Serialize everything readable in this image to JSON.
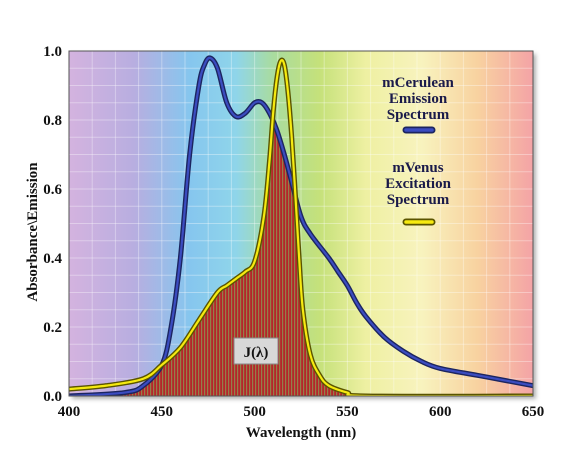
{
  "chart_data": {
    "type": "line",
    "title": "",
    "xlabel": "Wavelength (nm)",
    "ylabel": "Absorbance\\Emission",
    "xlim": [
      400,
      650
    ],
    "ylim": [
      0,
      1.0
    ],
    "x_ticks": [
      "400",
      "450",
      "500",
      "550",
      "600",
      "650"
    ],
    "y_ticks": [
      "0.0",
      "0.2",
      "0.4",
      "0.6",
      "0.8",
      "1.0"
    ],
    "grid": true,
    "series": [
      {
        "name_lines": [
          "mCerulean",
          "Emission",
          "Spectrum"
        ],
        "color": "#2e3c9e",
        "points": [
          [
            400,
            0.0
          ],
          [
            430,
            0.01
          ],
          [
            440,
            0.03
          ],
          [
            450,
            0.09
          ],
          [
            455,
            0.2
          ],
          [
            460,
            0.4
          ],
          [
            465,
            0.7
          ],
          [
            470,
            0.9
          ],
          [
            473,
            0.96
          ],
          [
            476,
            0.98
          ],
          [
            480,
            0.95
          ],
          [
            485,
            0.85
          ],
          [
            490,
            0.81
          ],
          [
            495,
            0.82
          ],
          [
            500,
            0.85
          ],
          [
            504,
            0.85
          ],
          [
            508,
            0.82
          ],
          [
            512,
            0.77
          ],
          [
            516,
            0.7
          ],
          [
            520,
            0.62
          ],
          [
            525,
            0.52
          ],
          [
            530,
            0.47
          ],
          [
            540,
            0.4
          ],
          [
            545,
            0.36
          ],
          [
            550,
            0.32
          ],
          [
            555,
            0.27
          ],
          [
            560,
            0.23
          ],
          [
            570,
            0.17
          ],
          [
            580,
            0.13
          ],
          [
            590,
            0.1
          ],
          [
            600,
            0.08
          ],
          [
            620,
            0.06
          ],
          [
            640,
            0.04
          ],
          [
            650,
            0.03
          ]
        ]
      },
      {
        "name_lines": [
          "mVenus",
          "Excitation",
          "Spectrum"
        ],
        "color": "#f2e600",
        "points": [
          [
            400,
            0.02
          ],
          [
            420,
            0.03
          ],
          [
            440,
            0.05
          ],
          [
            450,
            0.09
          ],
          [
            460,
            0.14
          ],
          [
            470,
            0.22
          ],
          [
            480,
            0.3
          ],
          [
            485,
            0.32
          ],
          [
            490,
            0.34
          ],
          [
            495,
            0.36
          ],
          [
            500,
            0.39
          ],
          [
            505,
            0.52
          ],
          [
            508,
            0.68
          ],
          [
            510,
            0.82
          ],
          [
            512,
            0.92
          ],
          [
            514,
            0.97
          ],
          [
            516,
            0.96
          ],
          [
            518,
            0.88
          ],
          [
            520,
            0.75
          ],
          [
            522,
            0.58
          ],
          [
            524,
            0.4
          ],
          [
            526,
            0.25
          ],
          [
            530,
            0.12
          ],
          [
            535,
            0.06
          ],
          [
            540,
            0.03
          ],
          [
            550,
            0.01
          ],
          [
            560,
            0.0
          ],
          [
            650,
            0.0
          ]
        ]
      }
    ],
    "overlap_label": "J(λ)"
  }
}
